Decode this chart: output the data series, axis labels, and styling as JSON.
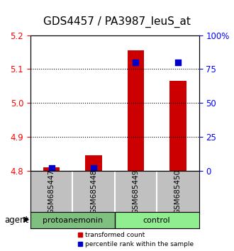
{
  "title": "GDS4457 / PA3987_leuS_at",
  "samples": [
    "GSM685447",
    "GSM685448",
    "GSM685449",
    "GSM685450"
  ],
  "transformed_counts": [
    4.81,
    4.845,
    5.155,
    5.065
  ],
  "percentile_ranks": [
    2.0,
    2.0,
    80.0,
    80.0
  ],
  "groups": [
    "protoanemonin",
    "protoanemonin",
    "control",
    "control"
  ],
  "group_colors": {
    "protoanemonin": "#90EE90",
    "control": "#90EE90"
  },
  "ylim_left": [
    4.8,
    5.2
  ],
  "ylim_right": [
    0,
    100
  ],
  "yticks_left": [
    4.8,
    4.9,
    5.0,
    5.1,
    5.2
  ],
  "yticks_right": [
    0,
    25,
    50,
    75,
    100
  ],
  "bar_color": "#CC0000",
  "dot_color": "#0000CC",
  "grid_color": "#000000",
  "bar_width": 0.4,
  "legend_bar_label": "transformed count",
  "legend_dot_label": "percentile rank within the sample",
  "agent_label": "agent",
  "background_plot": "#FFFFFF",
  "sample_box_color": "#C0C0C0",
  "title_fontsize": 11,
  "tick_fontsize": 8.5
}
